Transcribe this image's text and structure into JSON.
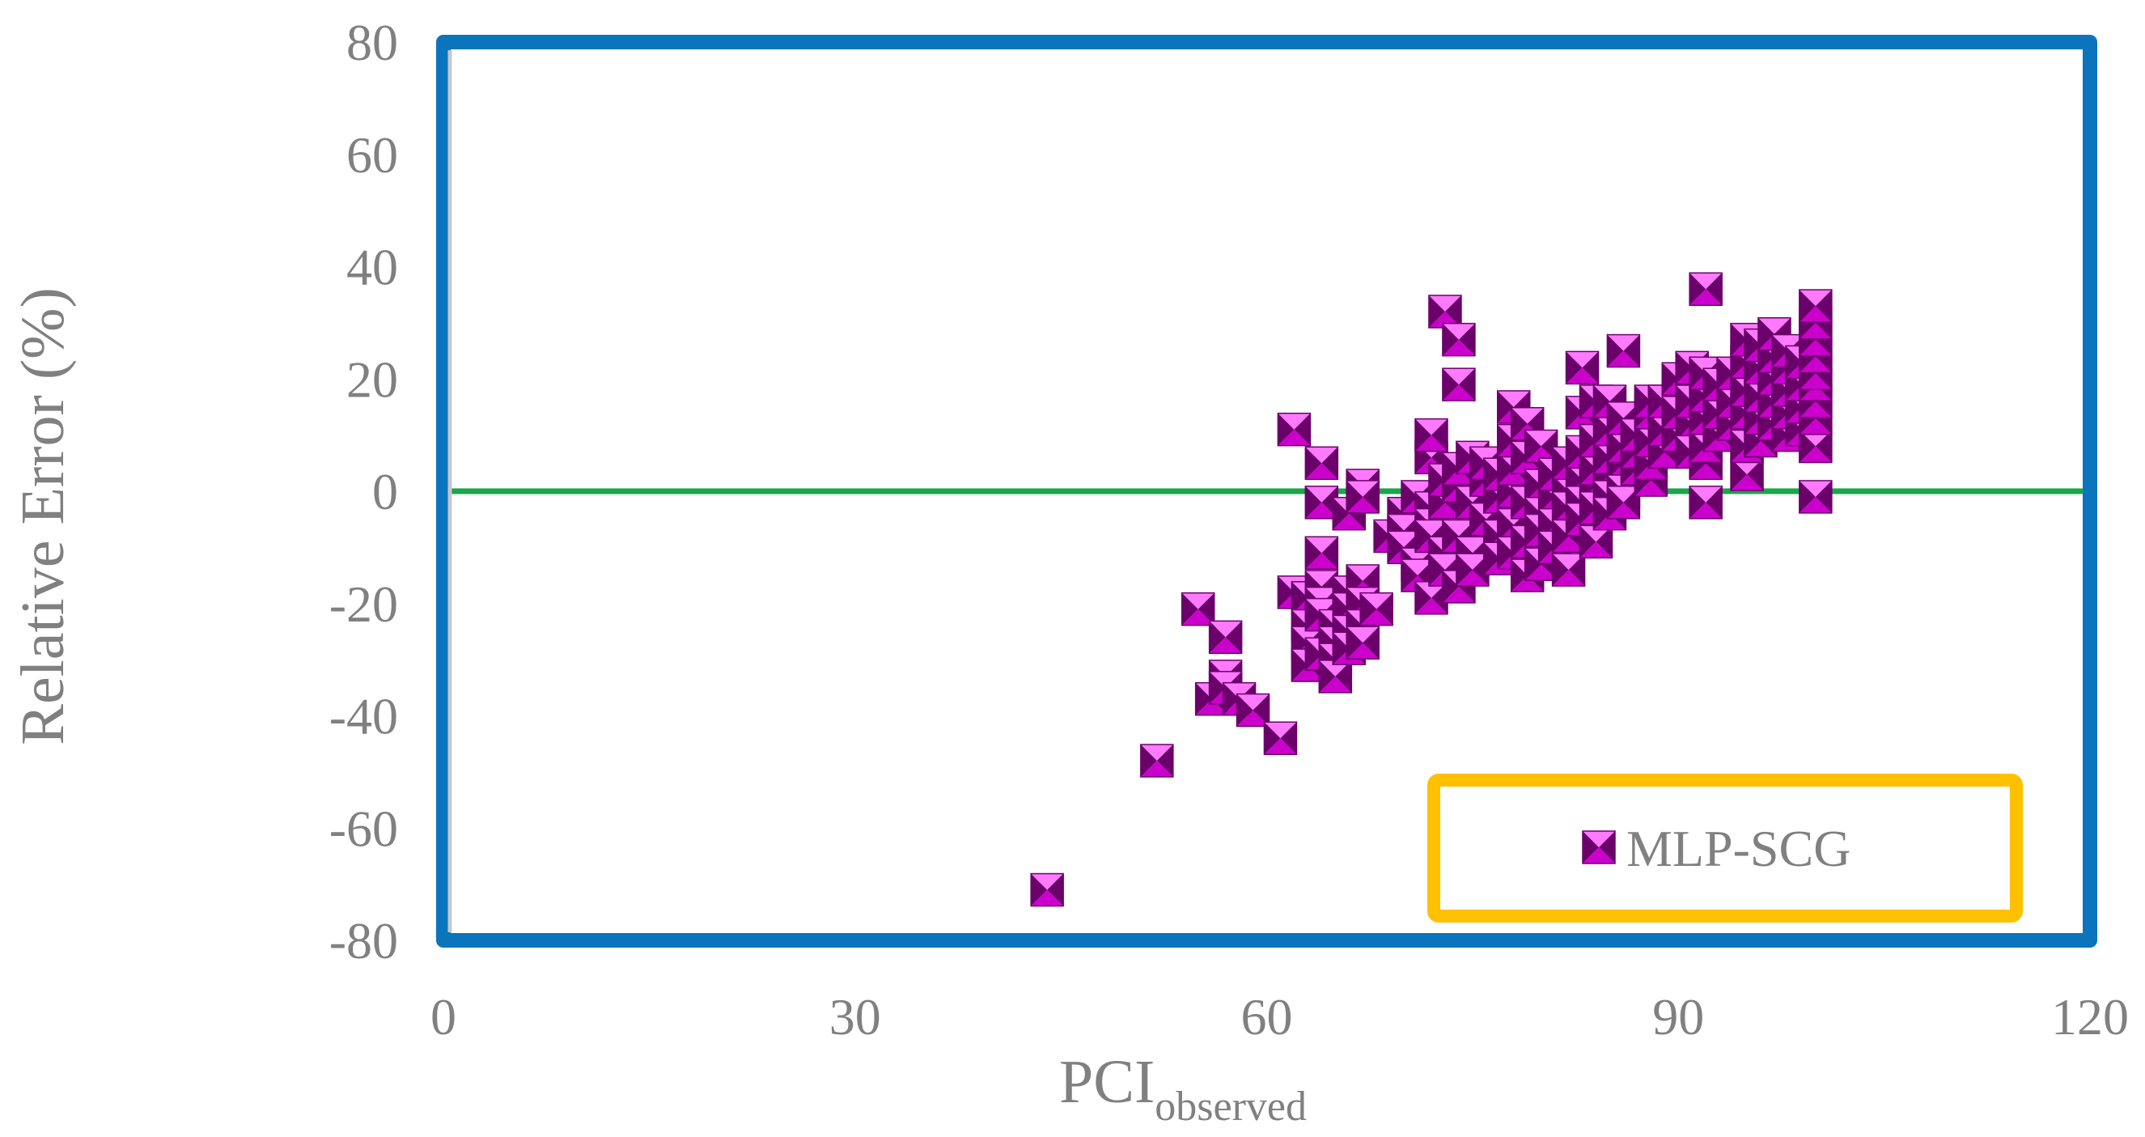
{
  "chart_data": {
    "type": "scatter",
    "xlabel": "PCI",
    "xlabel_subscript": "observed",
    "ylabel": "Relative Error (%)",
    "xlim": [
      0,
      120
    ],
    "ylim": [
      -80,
      80
    ],
    "x_ticks": [
      "0",
      "30",
      "60",
      "90",
      "120"
    ],
    "y_ticks": [
      "80",
      "60",
      "40",
      "20",
      "0",
      "-20",
      "-40",
      "-60",
      "-80"
    ],
    "grid": false,
    "legend_position": "bottom-right",
    "reference_line": {
      "y": 0,
      "color": "#1aa64a"
    },
    "colors": {
      "frame": "#0a74bd",
      "legend_border": "#ffc000",
      "marker": "#cc00cc",
      "marker_dark": "#6b006b",
      "marker_light": "#ff7aff"
    },
    "series": [
      {
        "name": "MLP-SCG",
        "marker": "pyramid-square",
        "points": [
          [
            44,
            -71
          ],
          [
            52,
            -48
          ],
          [
            55,
            -21
          ],
          [
            56,
            -37
          ],
          [
            57,
            -26
          ],
          [
            57,
            -33
          ],
          [
            57,
            -35
          ],
          [
            58,
            -37
          ],
          [
            59,
            -39
          ],
          [
            61,
            -44
          ],
          [
            62,
            -18
          ],
          [
            62,
            11
          ],
          [
            63,
            -19
          ],
          [
            63,
            -24
          ],
          [
            63,
            -27
          ],
          [
            63,
            -31
          ],
          [
            64,
            -17
          ],
          [
            64,
            -20
          ],
          [
            64,
            -2
          ],
          [
            64,
            5
          ],
          [
            64,
            -11
          ],
          [
            64,
            -22
          ],
          [
            64,
            -29
          ],
          [
            65,
            -24
          ],
          [
            65,
            -27
          ],
          [
            65,
            -30
          ],
          [
            65,
            -33
          ],
          [
            66,
            -18
          ],
          [
            66,
            -21
          ],
          [
            66,
            -4
          ],
          [
            66,
            -25
          ],
          [
            66,
            -28
          ],
          [
            67,
            -16
          ],
          [
            67,
            -20
          ],
          [
            67,
            -24
          ],
          [
            67,
            -27
          ],
          [
            67,
            1
          ],
          [
            67,
            -1
          ],
          [
            68,
            -21
          ],
          [
            69,
            -8
          ],
          [
            70,
            -4
          ],
          [
            70,
            -7
          ],
          [
            70,
            -10
          ],
          [
            71,
            -1
          ],
          [
            71,
            -13
          ],
          [
            71,
            -15
          ],
          [
            72,
            -3
          ],
          [
            72,
            -6
          ],
          [
            72,
            6
          ],
          [
            72,
            10
          ],
          [
            72,
            -19
          ],
          [
            72,
            -8
          ],
          [
            73,
            -2
          ],
          [
            73,
            2
          ],
          [
            73,
            32
          ],
          [
            73,
            -11
          ],
          [
            73,
            -14
          ],
          [
            74,
            1
          ],
          [
            74,
            4
          ],
          [
            74,
            -8
          ],
          [
            74,
            -17
          ],
          [
            74,
            27
          ],
          [
            74,
            19
          ],
          [
            75,
            -2
          ],
          [
            75,
            6
          ],
          [
            75,
            -11
          ],
          [
            75,
            -14
          ],
          [
            76,
            2
          ],
          [
            76,
            5
          ],
          [
            76,
            -5
          ],
          [
            77,
            -1
          ],
          [
            77,
            3
          ],
          [
            77,
            -8
          ],
          [
            77,
            -12
          ],
          [
            78,
            0
          ],
          [
            78,
            4
          ],
          [
            78,
            9
          ],
          [
            78,
            15
          ],
          [
            78,
            -6
          ],
          [
            78,
            -11
          ],
          [
            79,
            -2
          ],
          [
            79,
            6
          ],
          [
            79,
            12
          ],
          [
            79,
            -9
          ],
          [
            79,
            -15
          ],
          [
            80,
            1
          ],
          [
            80,
            8
          ],
          [
            80,
            -4
          ],
          [
            80,
            -13
          ],
          [
            80,
            -7
          ],
          [
            81,
            -1
          ],
          [
            81,
            3
          ],
          [
            81,
            -6
          ],
          [
            81,
            -10
          ],
          [
            82,
            0
          ],
          [
            82,
            5
          ],
          [
            82,
            -3
          ],
          [
            82,
            -14
          ],
          [
            82,
            -8
          ],
          [
            83,
            2
          ],
          [
            83,
            7
          ],
          [
            83,
            -2
          ],
          [
            83,
            -5
          ],
          [
            83,
            14
          ],
          [
            83,
            22
          ],
          [
            84,
            1
          ],
          [
            84,
            4
          ],
          [
            84,
            9
          ],
          [
            84,
            -3
          ],
          [
            84,
            -9
          ],
          [
            84,
            16
          ],
          [
            85,
            3
          ],
          [
            85,
            6
          ],
          [
            85,
            11
          ],
          [
            85,
            -1
          ],
          [
            85,
            -4
          ],
          [
            85,
            16
          ],
          [
            86,
            5
          ],
          [
            86,
            8
          ],
          [
            86,
            13
          ],
          [
            86,
            25
          ],
          [
            86,
            0
          ],
          [
            86,
            -2
          ],
          [
            87,
            4
          ],
          [
            87,
            7
          ],
          [
            87,
            10
          ],
          [
            88,
            2
          ],
          [
            88,
            5
          ],
          [
            88,
            9
          ],
          [
            88,
            14
          ],
          [
            88,
            16
          ],
          [
            89,
            7
          ],
          [
            89,
            11
          ],
          [
            89,
            16
          ],
          [
            90,
            10
          ],
          [
            90,
            14
          ],
          [
            90,
            20
          ],
          [
            91,
            12
          ],
          [
            91,
            16
          ],
          [
            91,
            22
          ],
          [
            91,
            7
          ],
          [
            92,
            5
          ],
          [
            92,
            8
          ],
          [
            92,
            13
          ],
          [
            92,
            17
          ],
          [
            92,
            21
          ],
          [
            92,
            36
          ],
          [
            92,
            -2
          ],
          [
            93,
            10
          ],
          [
            93,
            14
          ],
          [
            93,
            19
          ],
          [
            94,
            12
          ],
          [
            94,
            16
          ],
          [
            94,
            21
          ],
          [
            95,
            3
          ],
          [
            95,
            8
          ],
          [
            95,
            14
          ],
          [
            95,
            18
          ],
          [
            95,
            23
          ],
          [
            95,
            27
          ],
          [
            96,
            9
          ],
          [
            96,
            13
          ],
          [
            96,
            17
          ],
          [
            96,
            22
          ],
          [
            96,
            26
          ],
          [
            97,
            12
          ],
          [
            97,
            16
          ],
          [
            97,
            20
          ],
          [
            97,
            24
          ],
          [
            97,
            28
          ],
          [
            98,
            10
          ],
          [
            98,
            14
          ],
          [
            98,
            18
          ],
          [
            98,
            22
          ],
          [
            98,
            25
          ],
          [
            99,
            11
          ],
          [
            99,
            15
          ],
          [
            99,
            19
          ],
          [
            99,
            23
          ],
          [
            100,
            8
          ],
          [
            100,
            13
          ],
          [
            100,
            16
          ],
          [
            100,
            19
          ],
          [
            100,
            21
          ],
          [
            100,
            24
          ],
          [
            100,
            27
          ],
          [
            100,
            30
          ],
          [
            100,
            33
          ],
          [
            100,
            -1
          ]
        ]
      }
    ]
  }
}
